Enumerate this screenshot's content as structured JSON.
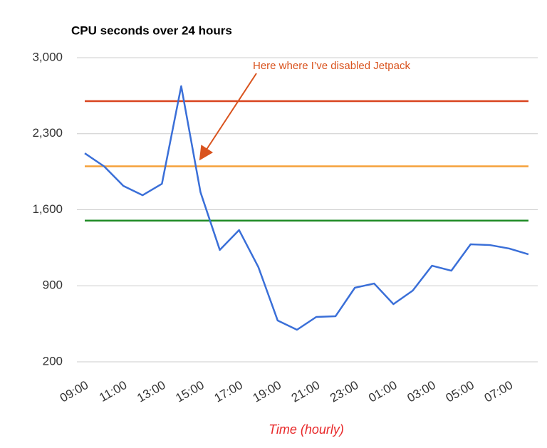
{
  "chart_data": {
    "type": "line",
    "title": "CPU seconds over 24 hours",
    "x_label": "Time (hourly)",
    "categories": [
      "09:00",
      null,
      "11:00",
      null,
      "13:00",
      null,
      "15:00",
      null,
      "17:00",
      null,
      "19:00",
      null,
      "21:00",
      null,
      "23:00",
      null,
      "01:00",
      null,
      "03:00",
      null,
      "05:00",
      null,
      "07:00",
      null
    ],
    "series": [
      {
        "color": "#3a6fd8",
        "values": [
          2120,
          2000,
          1820,
          1734,
          1839,
          2738,
          1761,
          1230,
          1413,
          1072,
          580,
          495,
          613,
          620,
          882,
          921,
          731,
          856,
          1085,
          1039,
          1282,
          1275,
          1243,
          1190
        ]
      }
    ],
    "reference_lines": [
      {
        "value": 2600,
        "color": "#d9441f"
      },
      {
        "value": 2000,
        "color": "#f5a13a"
      },
      {
        "value": 1500,
        "color": "#1e8a24"
      }
    ],
    "ylim": [
      200,
      3000
    ],
    "yticks": [
      200,
      900,
      {
        "value": 1600,
        "label": "1,600"
      },
      {
        "value": 2300,
        "label": "2,300"
      },
      {
        "value": 3000,
        "label": "3,000"
      }
    ],
    "grid": true,
    "annotation": "Here where I’ve disabled Jetpack"
  }
}
